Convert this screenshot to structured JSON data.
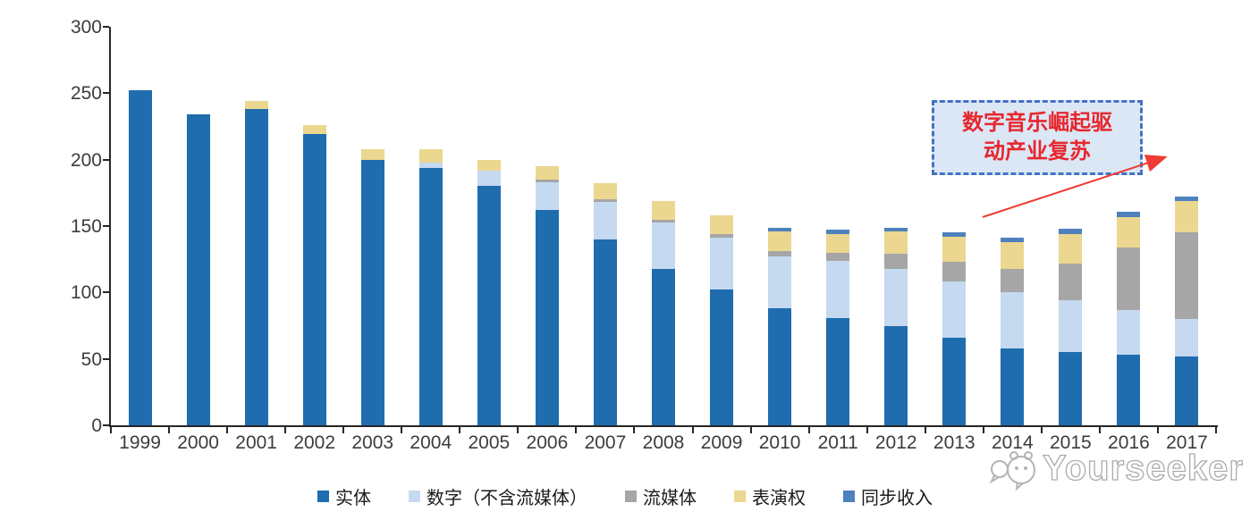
{
  "chart_data": {
    "type": "bar",
    "stacked": true,
    "title": "",
    "xlabel": "",
    "ylabel": "",
    "unit_hint": "",
    "ylim": [
      0,
      300
    ],
    "y_ticks": [
      0,
      50,
      100,
      150,
      200,
      250,
      300
    ],
    "grid": false,
    "legend_position": "bottom",
    "categories": [
      "1999",
      "2000",
      "2001",
      "2002",
      "2003",
      "2004",
      "2005",
      "2006",
      "2007",
      "2008",
      "2009",
      "2010",
      "2011",
      "2012",
      "2013",
      "2014",
      "2015",
      "2016",
      "2017"
    ],
    "series": [
      {
        "key": "physical",
        "name": "实体",
        "color": "#1f6cae",
        "values": [
          252,
          234,
          238,
          219,
          200,
          194,
          180,
          162,
          140,
          118,
          102,
          88,
          81,
          75,
          66,
          58,
          55,
          53,
          52
        ]
      },
      {
        "key": "digital",
        "name": "数字（不含流媒体）",
        "color": "#c5d9f0",
        "values": [
          0,
          0,
          0,
          0,
          0,
          4,
          12,
          21,
          28,
          35,
          39,
          39,
          43,
          43,
          42,
          42,
          39,
          34,
          28
        ]
      },
      {
        "key": "streaming",
        "name": "流媒体",
        "color": "#a6a6a6",
        "values": [
          0,
          0,
          0,
          0,
          0,
          0,
          0,
          2,
          2,
          2,
          3,
          4,
          6,
          11,
          15,
          18,
          28,
          47,
          65
        ]
      },
      {
        "key": "performance",
        "name": "表演权",
        "color": "#ebd78f",
        "values": [
          0,
          0,
          6,
          7,
          8,
          10,
          8,
          10,
          12,
          14,
          14,
          15,
          14,
          17,
          19,
          20,
          22,
          23,
          24
        ]
      },
      {
        "key": "sync",
        "name": "同步收入",
        "color": "#4e81bd",
        "values": [
          0,
          0,
          0,
          0,
          0,
          0,
          0,
          0,
          0,
          0,
          0,
          3,
          3,
          3,
          3,
          3,
          4,
          4,
          3
        ]
      }
    ]
  },
  "annotation": {
    "line1": "数字音乐崛起驱",
    "line2": "动产业复苏",
    "text_color": "#e8262d",
    "box_fill": "#dbe7f5",
    "border_color": "#4472c4",
    "arrow_color": "#ee3b33",
    "arrow_from": [
      1099,
      243
    ],
    "arrow_to": [
      1300,
      177
    ]
  },
  "watermark": {
    "text": "Yourseeker",
    "logo": "chat-bubbles-cat-icon",
    "color": "#ababab"
  },
  "axis_color": "#262626",
  "background": "#ffffff"
}
